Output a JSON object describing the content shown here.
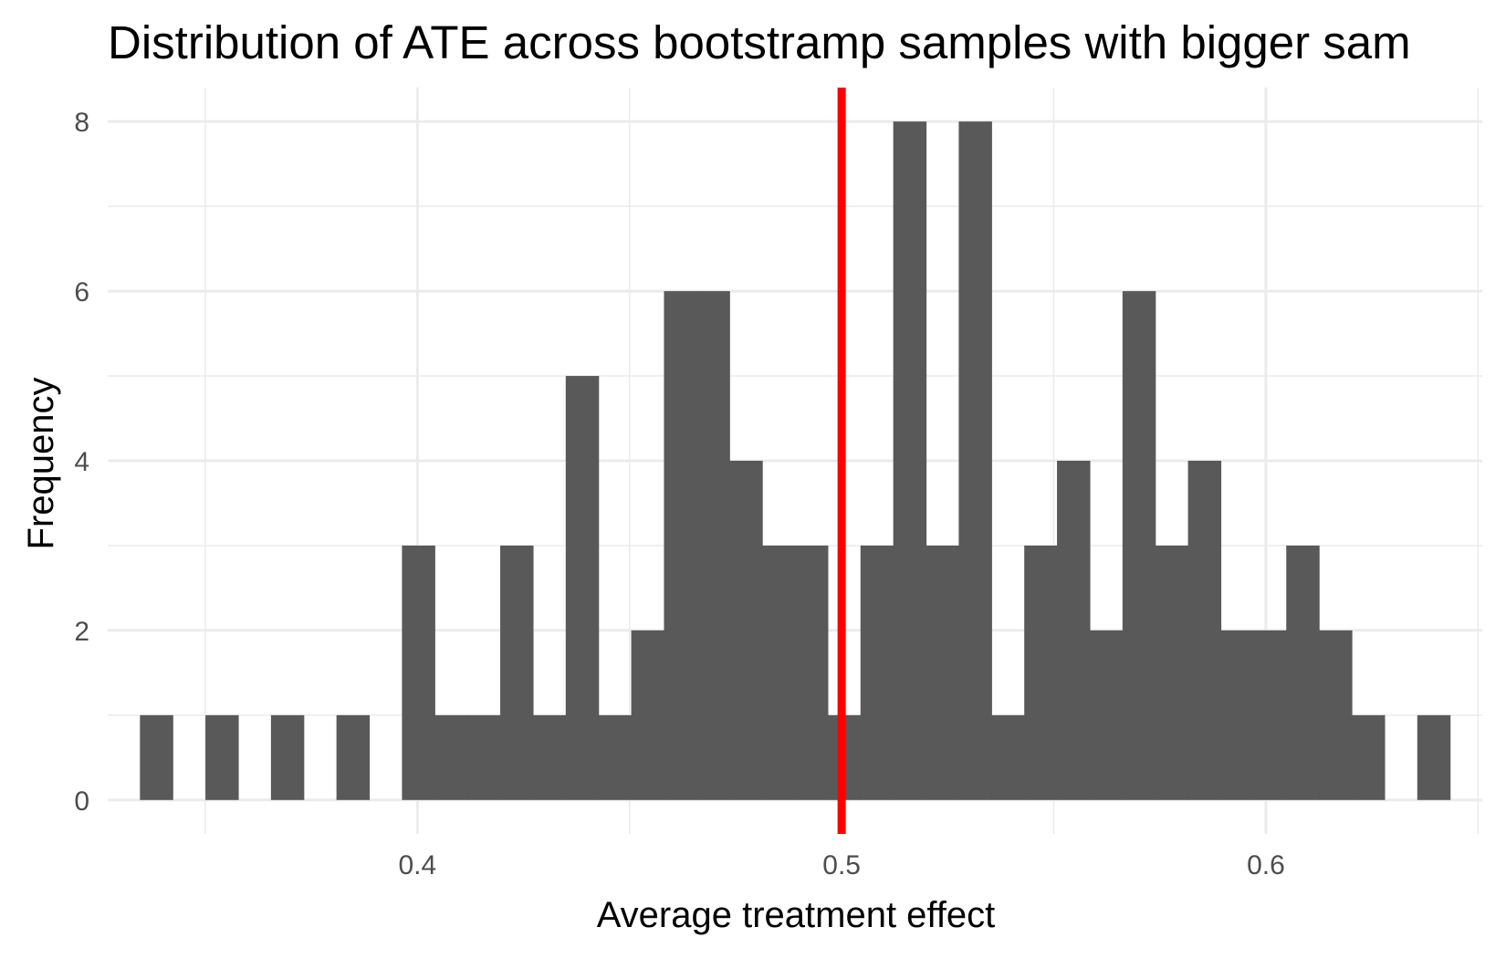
{
  "chart_data": {
    "type": "bar",
    "title": "Distribution of ATE across bootstramp samples with bigger sam",
    "xlabel": "Average treatment effect",
    "ylabel": "Frequency",
    "xlim": [
      0.327,
      0.651
    ],
    "ylim": [
      -0.4,
      8.4
    ],
    "x_ticks": [
      0.4,
      0.5,
      0.6
    ],
    "x_tick_labels": [
      "0.4",
      "0.5",
      "0.6"
    ],
    "x_minor_ticks": [
      0.35,
      0.45,
      0.55,
      0.65
    ],
    "y_ticks": [
      0,
      2,
      4,
      6,
      8
    ],
    "y_tick_labels": [
      "0",
      "2",
      "4",
      "6",
      "8"
    ],
    "y_minor_ticks": [
      1,
      3,
      5,
      7
    ],
    "grid": true,
    "bin_start": 0.3346,
    "bin_width": 0.00772,
    "values": [
      1,
      0,
      1,
      0,
      1,
      0,
      1,
      0,
      3,
      1,
      1,
      3,
      1,
      5,
      1,
      2,
      6,
      6,
      4,
      3,
      3,
      1,
      3,
      8,
      3,
      8,
      1,
      3,
      4,
      2,
      6,
      3,
      4,
      2,
      2,
      3,
      2,
      1,
      0,
      1
    ],
    "bar_color": "#595959",
    "reference_line": {
      "x": 0.5,
      "color": "#ff0000"
    }
  }
}
